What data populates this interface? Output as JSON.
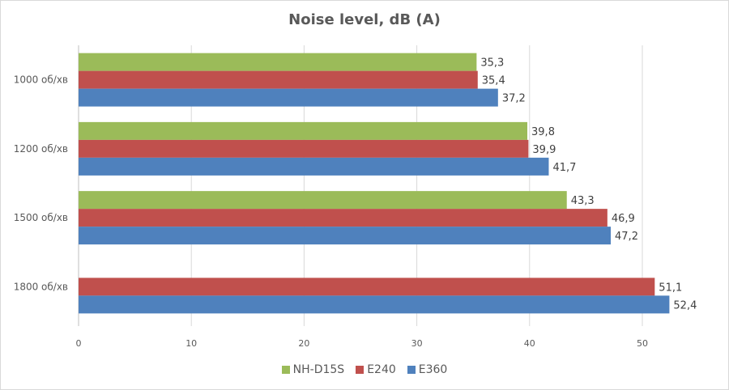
{
  "chart_data": {
    "type": "bar",
    "orientation": "horizontal",
    "title": "Noise level, dB (A)",
    "xlabel": "",
    "ylabel": "",
    "categories": [
      "1000 об/хв",
      "1200 об/хв",
      "1500 об/хв",
      "1800 об/хв"
    ],
    "series": [
      {
        "name": "NH-D15S",
        "color": "#9bbb59",
        "values": [
          35.3,
          39.8,
          43.3,
          null
        ],
        "labels": [
          "35,3",
          "39,8",
          "43,3",
          ""
        ]
      },
      {
        "name": "E240",
        "color": "#c0504d",
        "values": [
          35.4,
          39.9,
          46.9,
          51.1
        ],
        "labels": [
          "35,4",
          "39,9",
          "46,9",
          "51,1"
        ]
      },
      {
        "name": "E360",
        "color": "#4f81bd",
        "values": [
          37.2,
          41.7,
          47.2,
          52.4
        ],
        "labels": [
          "37,2",
          "41,7",
          "47,2",
          "52,4"
        ]
      }
    ],
    "xlim": [
      0,
      55
    ],
    "xticks": [
      0,
      10,
      20,
      30,
      40,
      50
    ],
    "xtick_labels": [
      "0",
      "10",
      "20",
      "30",
      "40",
      "50"
    ],
    "grid": true,
    "legend_position": "bottom"
  }
}
